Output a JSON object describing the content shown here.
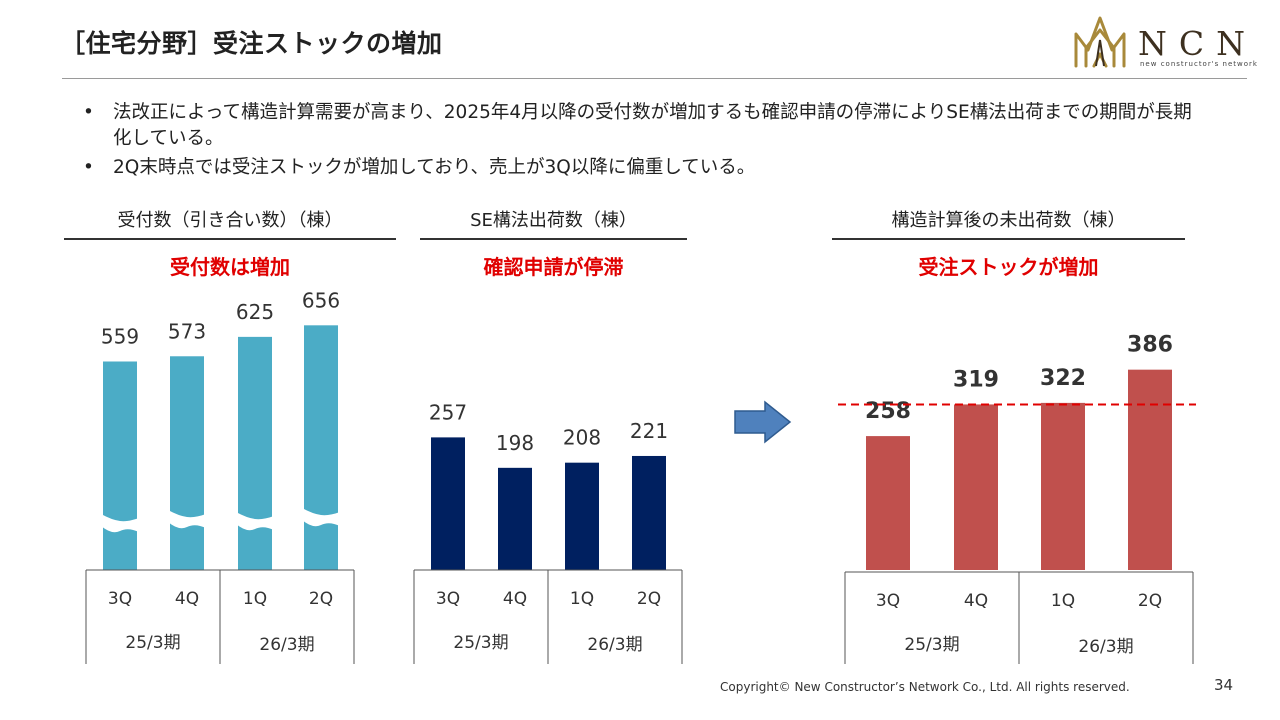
{
  "header": {
    "title": "［住宅分野］受注ストックの増加",
    "logo_text": "NCN",
    "logo_subtext": "new constructor's network",
    "colors": {
      "logo_gold": "#a8893a",
      "logo_dark": "#3d3020"
    }
  },
  "bullets": [
    "法改正によって構造計算需要が高まり、2025年4月以降の受付数が増加するも確認申請の停滞によりSE構法出荷までの期間が長期化している。",
    "2Q末時点では受注ストックが増加しており、売上が3Q以降に偏重している。"
  ],
  "panels": [
    {
      "title": "受付数（引き合い数）（棟）",
      "note": "受付数は増加"
    },
    {
      "title": "SE構法出荷数（棟）",
      "note": "確認申請が停滞"
    },
    {
      "title": "構造計算後の未出荷数（棟）",
      "note": "受注ストックが増加"
    }
  ],
  "arrow_icon": "right-arrow-icon",
  "chart_data": [
    {
      "type": "bar",
      "title": "受付数（引き合い数）（棟）",
      "categories": [
        "3Q",
        "4Q",
        "1Q",
        "2Q"
      ],
      "groups": [
        {
          "label": "25/3期",
          "categories": [
            "3Q",
            "4Q"
          ]
        },
        {
          "label": "26/3期",
          "categories": [
            "1Q",
            "2Q"
          ]
        }
      ],
      "values": [
        559,
        573,
        625,
        656
      ],
      "axis_break": true,
      "color": "#4bacc6",
      "ylim": [
        0,
        700
      ],
      "value_labels_bold": false
    },
    {
      "type": "bar",
      "title": "SE構法出荷数（棟）",
      "categories": [
        "3Q",
        "4Q",
        "1Q",
        "2Q"
      ],
      "groups": [
        {
          "label": "25/3期",
          "categories": [
            "3Q",
            "4Q"
          ]
        },
        {
          "label": "26/3期",
          "categories": [
            "1Q",
            "2Q"
          ]
        }
      ],
      "values": [
        257,
        198,
        208,
        221
      ],
      "color": "#002060",
      "ylim": [
        0,
        280
      ],
      "value_labels_bold": false
    },
    {
      "type": "bar",
      "title": "構造計算後の未出荷数（棟）",
      "categories": [
        "3Q",
        "4Q",
        "1Q",
        "2Q"
      ],
      "groups": [
        {
          "label": "25/3期",
          "categories": [
            "3Q",
            "4Q"
          ]
        },
        {
          "label": "26/3期",
          "categories": [
            "1Q",
            "2Q"
          ]
        }
      ],
      "values": [
        258,
        319,
        322,
        386
      ],
      "color": "#c0504d",
      "reference_line": {
        "value": 319,
        "color": "#e00000",
        "style": "dashed"
      },
      "ylim": [
        0,
        410
      ],
      "value_labels_bold": true
    }
  ],
  "footer": {
    "copyright": "Copyright© New Constructor’s Network Co., Ltd. All rights reserved.",
    "page_number": "34"
  }
}
